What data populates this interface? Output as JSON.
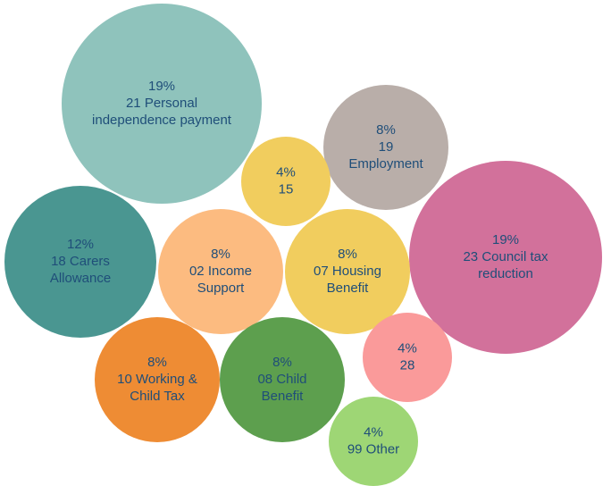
{
  "chart_data": {
    "type": "bubble",
    "title": "",
    "bubbles": [
      {
        "id": "personal-independence-payment",
        "percent": "19%",
        "lines": [
          "21 Personal",
          "independence payment"
        ],
        "color": "#8fc3bc"
      },
      {
        "id": "council-tax-reduction",
        "percent": "19%",
        "lines": [
          "23 Council tax",
          "reduction"
        ],
        "color": "#d2719b"
      },
      {
        "id": "carers-allowance",
        "percent": "12%",
        "lines": [
          "18 Carers",
          "Allowance"
        ],
        "color": "#4a9691"
      },
      {
        "id": "employment",
        "percent": "8%",
        "lines": [
          "19",
          "Employment"
        ],
        "color": "#b9aea9"
      },
      {
        "id": "income-support",
        "percent": "8%",
        "lines": [
          "02 Income",
          "Support"
        ],
        "color": "#fcbb80"
      },
      {
        "id": "housing-benefit",
        "percent": "8%",
        "lines": [
          "07 Housing",
          "Benefit"
        ],
        "color": "#f1cd5e"
      },
      {
        "id": "working-child-tax",
        "percent": "8%",
        "lines": [
          "10 Working &",
          "Child Tax"
        ],
        "color": "#ee8c34"
      },
      {
        "id": "child-benefit",
        "percent": "8%",
        "lines": [
          "08 Child",
          "Benefit"
        ],
        "color": "#5d9f4e"
      },
      {
        "id": "category-15",
        "percent": "4%",
        "lines": [
          "15"
        ],
        "color": "#f1cd5e"
      },
      {
        "id": "category-28",
        "percent": "4%",
        "lines": [
          "28"
        ],
        "color": "#fa9a9a"
      },
      {
        "id": "other",
        "percent": "4%",
        "lines": [
          "99 Other"
        ],
        "color": "#9ed675"
      }
    ]
  }
}
